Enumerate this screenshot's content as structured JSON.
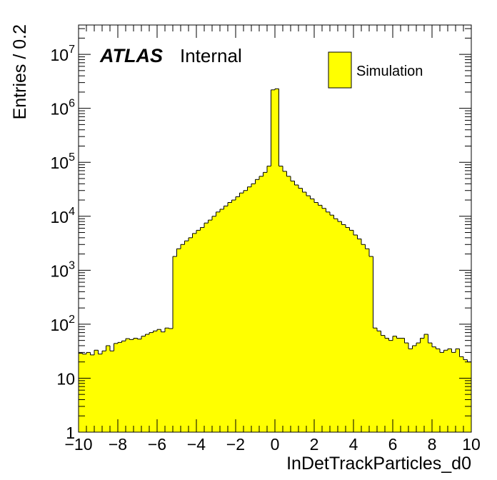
{
  "chart_data": {
    "type": "histogram",
    "title": "",
    "xlabel": "InDetTrackParticles_d0",
    "ylabel": "Entries / 0.2",
    "xlim": [
      -10,
      10
    ],
    "ylim": [
      1,
      35000000.0
    ],
    "y_scale": "log",
    "bin_width": 0.2,
    "x_ticks": [
      "−10",
      "−8",
      "−6",
      "−4",
      "−2",
      "0",
      "2",
      "4",
      "6",
      "8",
      "10"
    ],
    "y_tick_labels": [
      {
        "base": "1",
        "exp": ""
      },
      {
        "base": "10",
        "exp": ""
      },
      {
        "base": "10",
        "exp": "2"
      },
      {
        "base": "10",
        "exp": "3"
      },
      {
        "base": "10",
        "exp": "4"
      },
      {
        "base": "10",
        "exp": "5"
      },
      {
        "base": "10",
        "exp": "6"
      },
      {
        "base": "10",
        "exp": "7"
      }
    ],
    "fill_color": "#ffff00",
    "line_color": "#000000",
    "legend": {
      "position": "top-right",
      "entries": [
        "Simulation"
      ]
    },
    "annotation": {
      "experiment": "ATLAS",
      "status": "Internal"
    },
    "series": [
      {
        "name": "Simulation",
        "bin_low_edges": [
          -10.0,
          -9.8,
          -9.6,
          -9.4,
          -9.2,
          -9.0,
          -8.8,
          -8.6,
          -8.4,
          -8.2,
          -8.0,
          -7.8,
          -7.6,
          -7.4,
          -7.2,
          -7.0,
          -6.8,
          -6.6,
          -6.4,
          -6.2,
          -6.0,
          -5.8,
          -5.6,
          -5.4,
          -5.2,
          -5.0,
          -4.8,
          -4.6,
          -4.4,
          -4.2,
          -4.0,
          -3.8,
          -3.6,
          -3.4,
          -3.2,
          -3.0,
          -2.8,
          -2.6,
          -2.4,
          -2.2,
          -2.0,
          -1.8,
          -1.6,
          -1.4,
          -1.2,
          -1.0,
          -0.8,
          -0.6,
          -0.4,
          -0.2,
          0.0,
          0.2,
          0.4,
          0.6,
          0.8,
          1.0,
          1.2,
          1.4,
          1.6,
          1.8,
          2.0,
          2.2,
          2.4,
          2.6,
          2.8,
          3.0,
          3.2,
          3.4,
          3.6,
          3.8,
          4.0,
          4.2,
          4.4,
          4.6,
          4.8,
          5.0,
          5.2,
          5.4,
          5.6,
          5.8,
          6.0,
          6.2,
          6.4,
          6.6,
          6.8,
          7.0,
          7.2,
          7.4,
          7.6,
          7.8,
          8.0,
          8.2,
          8.4,
          8.6,
          8.8,
          9.0,
          9.2,
          9.4,
          9.6,
          9.8
        ],
        "values": [
          29,
          28,
          30,
          27,
          33,
          28,
          32,
          40,
          32,
          44,
          46,
          49,
          54,
          52,
          55,
          53,
          60,
          65,
          70,
          75,
          80,
          72,
          85,
          83,
          1800,
          2500,
          3000,
          3500,
          4000,
          4800,
          5500,
          6200,
          7500,
          8500,
          10000,
          12000,
          13500,
          15500,
          18000,
          20000,
          23000,
          27000,
          30000,
          35000,
          40000,
          48000,
          55000,
          65000,
          85000,
          2200000,
          2300000,
          85000,
          68000,
          55000,
          45000,
          38000,
          33000,
          28000,
          24000,
          21000,
          18000,
          16000,
          14000,
          12000,
          10500,
          9000,
          8000,
          7000,
          6200,
          5500,
          4500,
          3800,
          3000,
          2500,
          1800,
          85,
          75,
          62,
          55,
          50,
          60,
          55,
          55,
          45,
          35,
          40,
          45,
          55,
          65,
          45,
          38,
          35,
          30,
          33,
          35,
          30,
          35,
          25,
          22,
          20
        ]
      }
    ]
  }
}
